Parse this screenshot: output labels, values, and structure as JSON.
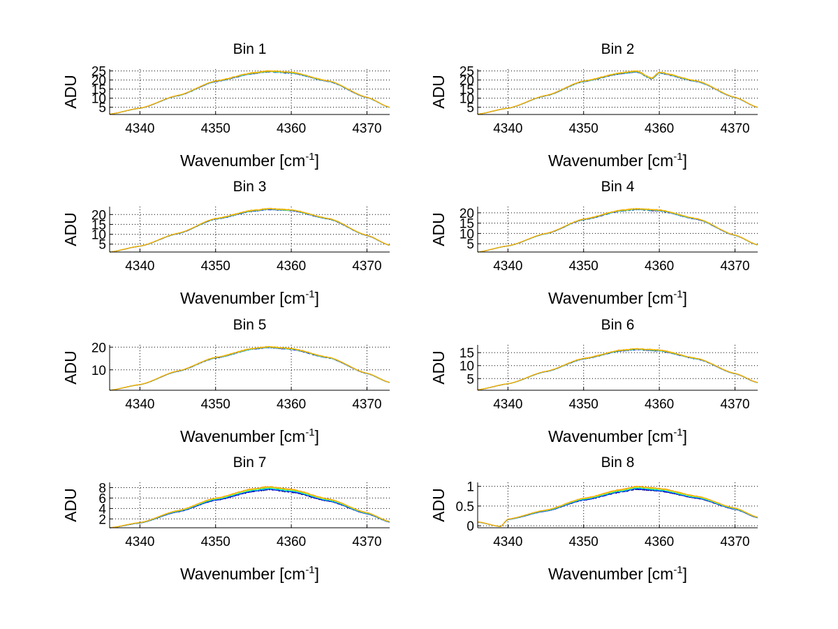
{
  "figure": {
    "background": "#ffffff"
  },
  "chart_data": [
    {
      "type": "line",
      "title": "Bin 1",
      "xlabel": "Wavenumber [cm",
      "xlabel_sup": "-1",
      "xlabel_end": "]",
      "ylabel": "ADU",
      "xlim": [
        4336,
        4373
      ],
      "ylim": [
        1,
        26
      ],
      "x_ticks": [
        4340,
        4350,
        4360,
        4370
      ],
      "y_ticks": [
        5,
        10,
        15,
        20,
        25
      ],
      "grid": true,
      "peak_x": 4357,
      "peak_value": 25,
      "edge_left_value": 1,
      "edge_right_value": 5,
      "series_colors": [
        "#000080",
        "#0000ff",
        "#00aaff",
        "#00d0a0",
        "#80ff80",
        "#d0d000",
        "#ffa500"
      ],
      "series": [
        {
          "x": [
            4336,
            4340,
            4345,
            4350,
            4355,
            4357,
            4360,
            4365,
            4370,
            4373
          ],
          "values": [
            1.2,
            4.5,
            11.5,
            19.5,
            24.0,
            25.0,
            24.3,
            19.5,
            10.5,
            5.0
          ]
        }
      ]
    },
    {
      "type": "line",
      "title": "Bin 2",
      "xlabel": "Wavenumber [cm",
      "xlabel_sup": "-1",
      "xlabel_end": "]",
      "ylabel": "ADU",
      "xlim": [
        4336,
        4373
      ],
      "ylim": [
        1,
        26
      ],
      "x_ticks": [
        4340,
        4350,
        4360,
        4370
      ],
      "y_ticks": [
        5,
        10,
        15,
        20,
        25
      ],
      "grid": true,
      "peak_x": 4357,
      "peak_value": 25,
      "edge_left_value": 1,
      "edge_right_value": 5,
      "dip": {
        "x": 4359,
        "value": 21
      },
      "series_colors": [
        "#000080",
        "#0000ff",
        "#00aaff",
        "#00d0a0",
        "#80ff80",
        "#d0d000",
        "#ffa500"
      ],
      "series": [
        {
          "x": [
            4336,
            4340,
            4345,
            4350,
            4355,
            4357,
            4359,
            4360,
            4365,
            4370,
            4373
          ],
          "values": [
            1.2,
            4.5,
            11.5,
            19.5,
            24.0,
            25.0,
            21.0,
            24.3,
            19.5,
            10.5,
            5.0
          ]
        }
      ]
    },
    {
      "type": "line",
      "title": "Bin 3",
      "xlabel": "Wavenumber [cm",
      "xlabel_sup": "-1",
      "xlabel_end": "]",
      "ylabel": "ADU",
      "xlim": [
        4336,
        4373
      ],
      "ylim": [
        1,
        24
      ],
      "x_ticks": [
        4340,
        4350,
        4360,
        4370
      ],
      "y_ticks": [
        5,
        10,
        15,
        20
      ],
      "grid": true,
      "peak_x": 4357,
      "peak_value": 23,
      "edge_left_value": 1,
      "edge_right_value": 5,
      "series_colors": [
        "#000080",
        "#0000ff",
        "#00aaff",
        "#00d0a0",
        "#80ff80",
        "#d0d000",
        "#ffa500"
      ],
      "series": [
        {
          "x": [
            4336,
            4340,
            4345,
            4350,
            4355,
            4357,
            4360,
            4365,
            4370,
            4373
          ],
          "values": [
            1.0,
            4.0,
            10.5,
            18.0,
            22.2,
            23.0,
            22.4,
            18.0,
            9.5,
            4.5
          ]
        }
      ]
    },
    {
      "type": "line",
      "title": "Bin 4",
      "xlabel": "Wavenumber [cm",
      "xlabel_sup": "-1",
      "xlabel_end": "]",
      "ylabel": "ADU",
      "xlim": [
        4336,
        4373
      ],
      "ylim": [
        1,
        23
      ],
      "x_ticks": [
        4340,
        4350,
        4360,
        4370
      ],
      "y_ticks": [
        5,
        10,
        15,
        20
      ],
      "grid": true,
      "peak_x": 4357,
      "peak_value": 22,
      "edge_left_value": 1,
      "edge_right_value": 5,
      "series_colors": [
        "#000080",
        "#0000ff",
        "#00aaff",
        "#00d0a0",
        "#80ff80",
        "#d0d000",
        "#ffa500"
      ],
      "series": [
        {
          "x": [
            4336,
            4340,
            4345,
            4350,
            4355,
            4357,
            4360,
            4365,
            4370,
            4373
          ],
          "values": [
            1.0,
            4.0,
            10.0,
            17.0,
            21.3,
            22.0,
            21.4,
            17.2,
            9.2,
            4.5
          ]
        }
      ]
    },
    {
      "type": "line",
      "title": "Bin 5",
      "xlabel": "Wavenumber [cm",
      "xlabel_sup": "-1",
      "xlabel_end": "]",
      "ylabel": "ADU",
      "xlim": [
        4336,
        4373
      ],
      "ylim": [
        1,
        21
      ],
      "x_ticks": [
        4340,
        4350,
        4360,
        4370
      ],
      "y_ticks": [
        10,
        20
      ],
      "grid": true,
      "peak_x": 4357,
      "peak_value": 20,
      "edge_left_value": 1,
      "edge_right_value": 4.5,
      "series_colors": [
        "#000080",
        "#0000ff",
        "#00aaff",
        "#00d0a0",
        "#80ff80",
        "#d0d000",
        "#ffa500"
      ],
      "series": [
        {
          "x": [
            4336,
            4340,
            4345,
            4350,
            4355,
            4357,
            4360,
            4365,
            4370,
            4373
          ],
          "values": [
            1.0,
            3.5,
            9.5,
            15.5,
            19.5,
            20.2,
            19.4,
            15.5,
            8.5,
            4.5
          ]
        }
      ]
    },
    {
      "type": "line",
      "title": "Bin 6",
      "xlabel": "Wavenumber [cm",
      "xlabel_sup": "-1",
      "xlabel_end": "]",
      "ylabel": "ADU",
      "xlim": [
        4336,
        4373
      ],
      "ylim": [
        0.5,
        18
      ],
      "x_ticks": [
        4340,
        4350,
        4360,
        4370
      ],
      "y_ticks": [
        5,
        10,
        15
      ],
      "grid": true,
      "peak_x": 4357,
      "peak_value": 16.5,
      "edge_left_value": 0.7,
      "edge_right_value": 3.5,
      "series_colors": [
        "#000080",
        "#0000ff",
        "#00aaff",
        "#00d0a0",
        "#80ff80",
        "#d0d000",
        "#ffa500"
      ],
      "series": [
        {
          "x": [
            4336,
            4340,
            4345,
            4350,
            4355,
            4357,
            4360,
            4365,
            4370,
            4373
          ],
          "values": [
            0.7,
            3.0,
            7.8,
            12.8,
            16.0,
            16.5,
            16.0,
            12.8,
            7.0,
            3.5
          ]
        }
      ]
    },
    {
      "type": "line",
      "title": "Bin 7",
      "xlabel": "Wavenumber [cm",
      "xlabel_sup": "-1",
      "xlabel_end": "]",
      "ylabel": "ADU",
      "xlim": [
        4336,
        4373
      ],
      "ylim": [
        0.3,
        9
      ],
      "x_ticks": [
        4340,
        4350,
        4360,
        4370
      ],
      "y_ticks": [
        2,
        4,
        6,
        8
      ],
      "grid": true,
      "peak_x": 4357,
      "peak_value": 8.2,
      "edge_left_value": 0.3,
      "edge_right_value": 1.5,
      "series_colors": [
        "#000080",
        "#0000ff",
        "#00aaff",
        "#00d0a0",
        "#80ff80",
        "#d0d000",
        "#ffa500"
      ],
      "series": [
        {
          "x": [
            4336,
            4340,
            4345,
            4350,
            4355,
            4357,
            4360,
            4365,
            4370,
            4373
          ],
          "values": [
            0.3,
            1.3,
            3.6,
            6.0,
            7.8,
            8.2,
            7.7,
            5.8,
            3.2,
            1.5
          ]
        }
      ]
    },
    {
      "type": "line",
      "title": "Bin 8",
      "xlabel": "Wavenumber [cm",
      "xlabel_sup": "-1",
      "xlabel_end": "]",
      "ylabel": "ADU",
      "xlim": [
        4336,
        4373
      ],
      "ylim": [
        -0.05,
        1.1
      ],
      "x_ticks": [
        4340,
        4350,
        4360,
        4370
      ],
      "y_ticks": [
        0,
        0.5,
        1
      ],
      "grid": true,
      "peak_x": 4357,
      "peak_value": 1.0,
      "edge_left_value": 0.1,
      "edge_right_value": 0.22,
      "dip": {
        "x": 4339,
        "value": -0.02
      },
      "series_colors": [
        "#000080",
        "#0000ff",
        "#00aaff",
        "#00d0a0",
        "#80ff80",
        "#d0d000",
        "#ffa500"
      ],
      "series": [
        {
          "x": [
            4336,
            4339,
            4340,
            4345,
            4350,
            4355,
            4357,
            4360,
            4365,
            4370,
            4373
          ],
          "values": [
            0.1,
            -0.02,
            0.17,
            0.4,
            0.7,
            0.92,
            1.0,
            0.95,
            0.75,
            0.45,
            0.22
          ]
        }
      ]
    }
  ]
}
